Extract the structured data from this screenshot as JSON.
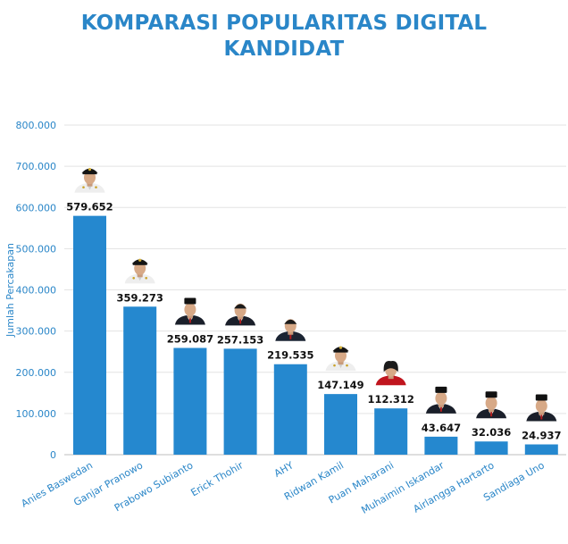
{
  "title_lines": [
    "KOMPARASI POPULARITAS DIGITAL",
    "KANDIDAT"
  ],
  "colors": {
    "title": "#2a86c8",
    "bar": "#2588cf",
    "axis_text": "#2a86c8",
    "value_label": "#111111",
    "grid": "#e3e3e3"
  },
  "chart_data": {
    "type": "bar",
    "title": "KOMPARASI POPULARITAS DIGITAL KANDIDAT",
    "ylabel": "Jumlah Percakapan",
    "xlabel": "",
    "ylim": [
      0,
      800000
    ],
    "grid": true,
    "yticks": [
      0,
      100000,
      200000,
      300000,
      400000,
      500000,
      600000,
      700000,
      800000
    ],
    "ytick_labels": [
      "0",
      "100.000",
      "200.000",
      "300.000",
      "400.000",
      "500.000",
      "600.000",
      "700.000",
      "800.000"
    ],
    "categories": [
      "Anies Baswedan",
      "Ganjar Pranowo",
      "Prabowo Subianto",
      "Erick Thohir",
      "AHY",
      "Ridwan Kamil",
      "Puan Maharani",
      "Muhaimin Iskandar",
      "Airlangga Hartarto",
      "Sandiaga Uno"
    ],
    "values": [
      579652,
      359273,
      259087,
      257153,
      219535,
      147149,
      112312,
      43647,
      32036,
      24937
    ],
    "value_labels": [
      "579.652",
      "359.273",
      "259.087",
      "257.153",
      "219.535",
      "147.149",
      "112.312",
      "43.647",
      "32.036",
      "24.937"
    ],
    "icons": [
      "official-white-uniform-portrait-icon",
      "official-white-uniform-portrait-icon",
      "peci-black-suit-portrait-icon",
      "black-suit-portrait-icon",
      "dark-suit-portrait-icon",
      "official-white-uniform-portrait-icon",
      "red-outfit-woman-portrait-icon",
      "peci-black-suit-portrait-icon",
      "peci-black-suit-portrait-icon",
      "peci-black-suit-portrait-icon"
    ]
  }
}
